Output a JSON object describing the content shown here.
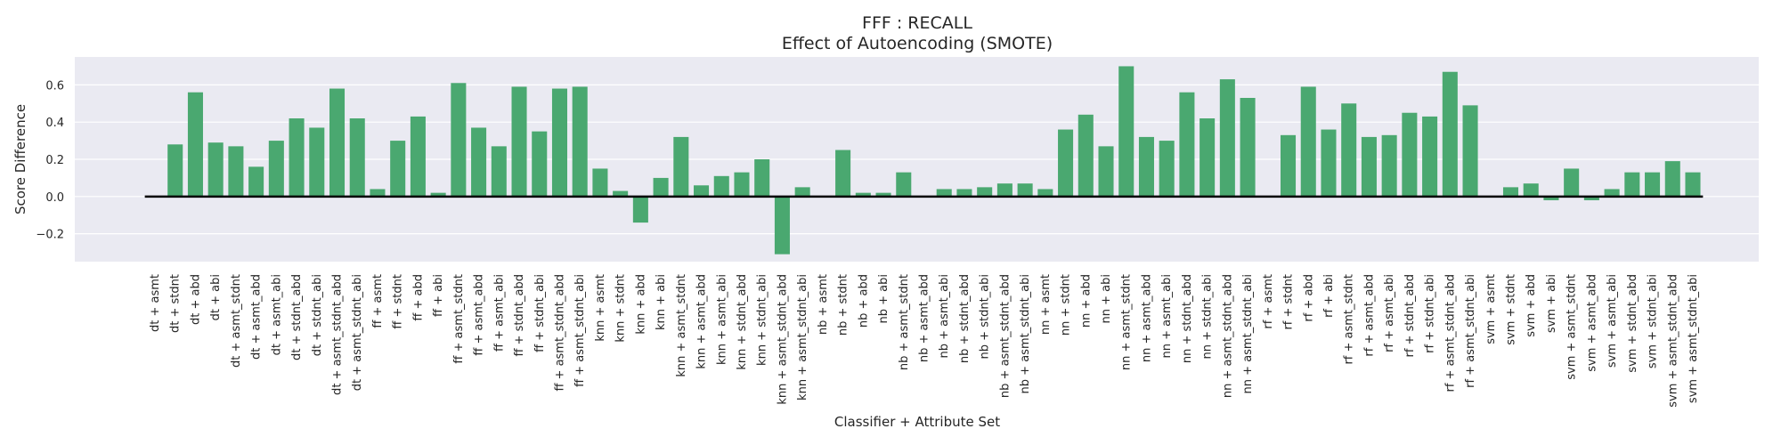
{
  "chart_data": {
    "type": "bar",
    "title": "FFF : RECALL",
    "subtitle": "Effect of Autoencoding (SMOTE)",
    "xlabel": "Classifier + Attribute Set",
    "ylabel": "Score Difference",
    "ylim": [
      -0.35,
      0.75
    ],
    "yticks": [
      -0.2,
      0.0,
      0.2,
      0.4,
      0.6
    ],
    "ytick_labels": [
      "−0.2",
      "0.0",
      "0.2",
      "0.4",
      "0.6"
    ],
    "grid": true,
    "legend": "none",
    "colors": {
      "bar": "#4aa870",
      "background": "#eaeaf2",
      "grid": "#ffffff",
      "zero_line": "#000000"
    },
    "categories": [
      "dt + asmt",
      "dt + stdnt",
      "dt + abd",
      "dt + abi",
      "dt + asmt_stdnt",
      "dt + asmt_abd",
      "dt + asmt_abi",
      "dt + stdnt_abd",
      "dt + stdnt_abi",
      "dt + asmt_stdnt_abd",
      "dt + asmt_stdnt_abi",
      "ff + asmt",
      "ff + stdnt",
      "ff + abd",
      "ff + abi",
      "ff + asmt_stdnt",
      "ff + asmt_abd",
      "ff + asmt_abi",
      "ff + stdnt_abd",
      "ff + stdnt_abi",
      "ff + asmt_stdnt_abd",
      "ff + asmt_stdnt_abi",
      "knn + asmt",
      "knn + stdnt",
      "knn + abd",
      "knn + abi",
      "knn + asmt_stdnt",
      "knn + asmt_abd",
      "knn + asmt_abi",
      "knn + stdnt_abd",
      "knn + stdnt_abi",
      "knn + asmt_stdnt_abd",
      "knn + asmt_stdnt_abi",
      "nb + asmt",
      "nb + stdnt",
      "nb + abd",
      "nb + abi",
      "nb + asmt_stdnt",
      "nb + asmt_abd",
      "nb + asmt_abi",
      "nb + stdnt_abd",
      "nb + stdnt_abi",
      "nb + asmt_stdnt_abd",
      "nb + asmt_stdnt_abi",
      "nn + asmt",
      "nn + stdnt",
      "nn + abd",
      "nn + abi",
      "nn + asmt_stdnt",
      "nn + asmt_abd",
      "nn + asmt_abi",
      "nn + stdnt_abd",
      "nn + stdnt_abi",
      "nn + asmt_stdnt_abd",
      "nn + asmt_stdnt_abi",
      "rf + asmt",
      "rf + stdnt",
      "rf + abd",
      "rf + abi",
      "rf + asmt_stdnt",
      "rf + asmt_abd",
      "rf + asmt_abi",
      "rf + stdnt_abd",
      "rf + stdnt_abi",
      "rf + asmt_stdnt_abd",
      "rf + asmt_stdnt_abi",
      "svm + asmt",
      "svm + stdnt",
      "svm + abd",
      "svm + abi",
      "svm + asmt_stdnt",
      "svm + asmt_abd",
      "svm + asmt_abi",
      "svm + stdnt_abd",
      "svm + stdnt_abi",
      "svm + asmt_stdnt_abd",
      "svm + asmt_stdnt_abi"
    ],
    "values": [
      0.0,
      0.28,
      0.56,
      0.29,
      0.27,
      0.16,
      0.3,
      0.42,
      0.37,
      0.58,
      0.42,
      0.04,
      0.3,
      0.43,
      0.02,
      0.61,
      0.37,
      0.27,
      0.59,
      0.35,
      0.58,
      0.59,
      0.15,
      0.03,
      -0.14,
      0.1,
      0.32,
      0.06,
      0.11,
      0.13,
      0.2,
      -0.31,
      0.05,
      0.0,
      0.25,
      0.02,
      0.02,
      0.13,
      0.0,
      0.04,
      0.04,
      0.05,
      0.07,
      0.07,
      0.04,
      0.36,
      0.44,
      0.27,
      0.7,
      0.32,
      0.3,
      0.56,
      0.42,
      0.63,
      0.53,
      0.0,
      0.33,
      0.59,
      0.36,
      0.5,
      0.32,
      0.33,
      0.45,
      0.43,
      0.67,
      0.49,
      0.0,
      0.05,
      0.07,
      -0.02,
      0.15,
      -0.02,
      0.04,
      0.13,
      0.13,
      0.19,
      0.13
    ]
  }
}
